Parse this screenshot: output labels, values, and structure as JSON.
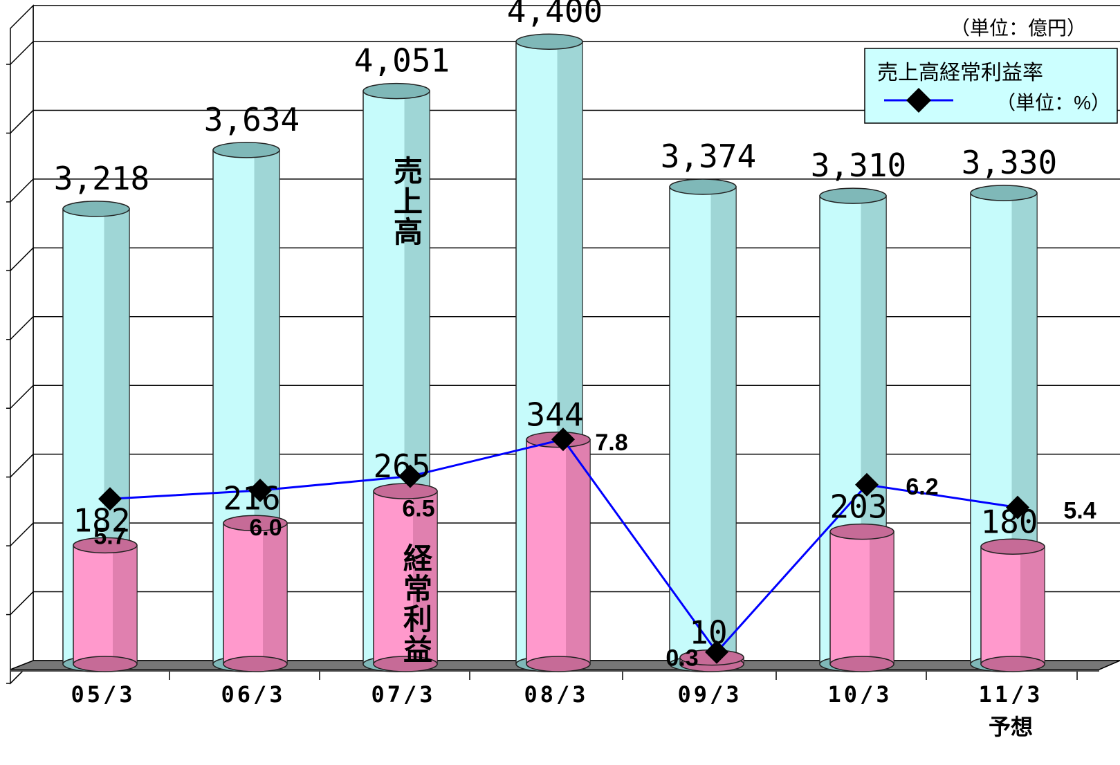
{
  "unit_note": "（単位：億円）",
  "legend": {
    "title": "売上高経常利益率",
    "unit": "（単位：%）"
  },
  "colors": {
    "sales": "#c6fbfb",
    "sales_dark": "#7fb8b8",
    "profit": "#ff99cc",
    "profit_dark": "#c66b97",
    "line": "#0000ff"
  },
  "chart_data": {
    "type": "bar",
    "categories": [
      "05/3",
      "06/3",
      "07/3",
      "08/3",
      "09/3",
      "10/3",
      "11/3"
    ],
    "category_sublabels": [
      "",
      "",
      "",
      "",
      "",
      "",
      "予想"
    ],
    "series": [
      {
        "name": "売上高",
        "values": [
          3218,
          3634,
          4051,
          4400,
          3374,
          3310,
          3330
        ],
        "labels": [
          "3,218",
          "3,634",
          "4,051",
          "4,400",
          "3,374",
          "3,310",
          "3,330"
        ]
      },
      {
        "name": "経常利益",
        "values": [
          182,
          216,
          265,
          344,
          10,
          203,
          180
        ],
        "labels": [
          "182",
          "216",
          "265",
          "344",
          "10",
          "203",
          "180"
        ]
      },
      {
        "name": "売上高経常利益率",
        "type": "line",
        "values": [
          5.7,
          6.0,
          6.5,
          7.8,
          0.3,
          6.2,
          5.4
        ],
        "labels": [
          "5.7",
          "6.0",
          "6.5",
          "7.8",
          "0.3",
          "6.2",
          "5.4"
        ]
      }
    ],
    "inline_labels": {
      "sales": "売上高",
      "profit": "経常利益"
    },
    "grid": true,
    "legend_position": "top-right"
  }
}
